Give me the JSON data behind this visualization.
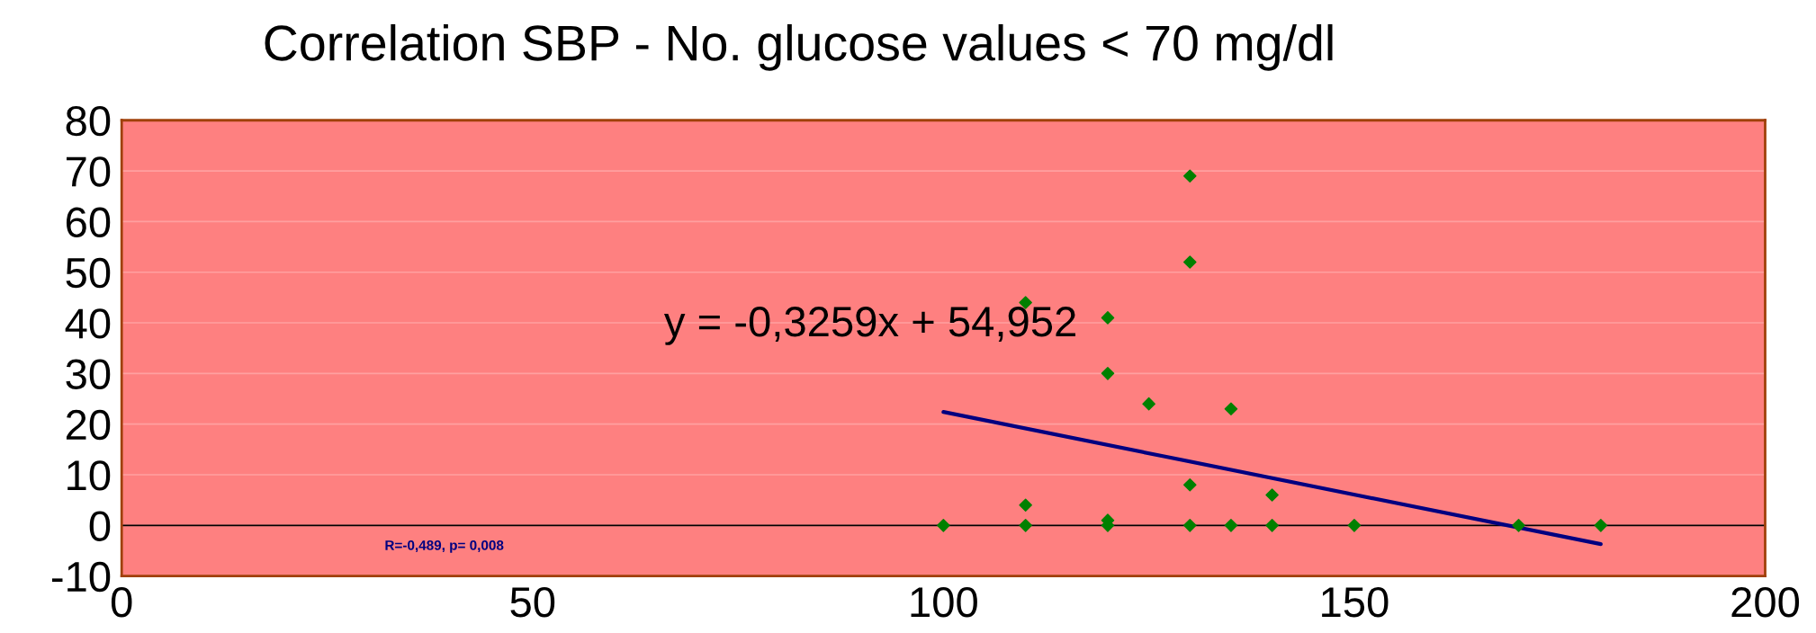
{
  "chart_data": {
    "type": "scatter",
    "title": "Correlation SBP - No. glucose values < 70 mg/dl",
    "xlim": [
      0,
      200
    ],
    "xticks": [
      0,
      50,
      100,
      150,
      200
    ],
    "ylim": [
      -10,
      80
    ],
    "yticks": [
      -10,
      0,
      10,
      20,
      30,
      40,
      50,
      60,
      70,
      80
    ],
    "grid": "y",
    "marker": "diamond",
    "series": [
      {
        "color": "#008000",
        "x": [
          100,
          110,
          110,
          110,
          120,
          120,
          120,
          120,
          125,
          130,
          130,
          130,
          130,
          135,
          135,
          140,
          140,
          150,
          170,
          180
        ],
        "values": [
          0,
          44,
          4,
          0,
          41,
          30,
          1,
          0,
          24,
          69,
          52,
          8,
          0,
          23,
          0,
          6,
          0,
          0,
          0,
          0
        ]
      },
      {
        "type": "line",
        "color": "#000080",
        "marker": "none",
        "x": [
          100,
          180
        ],
        "values": [
          22.4,
          -3.7
        ]
      }
    ],
    "ref_lines": [
      {
        "axis": "y",
        "value": 0,
        "color": "#000000"
      }
    ],
    "annotations": [
      "y = -0,3259x + 54,952",
      "R=-0,489, p= 0,008"
    ]
  }
}
